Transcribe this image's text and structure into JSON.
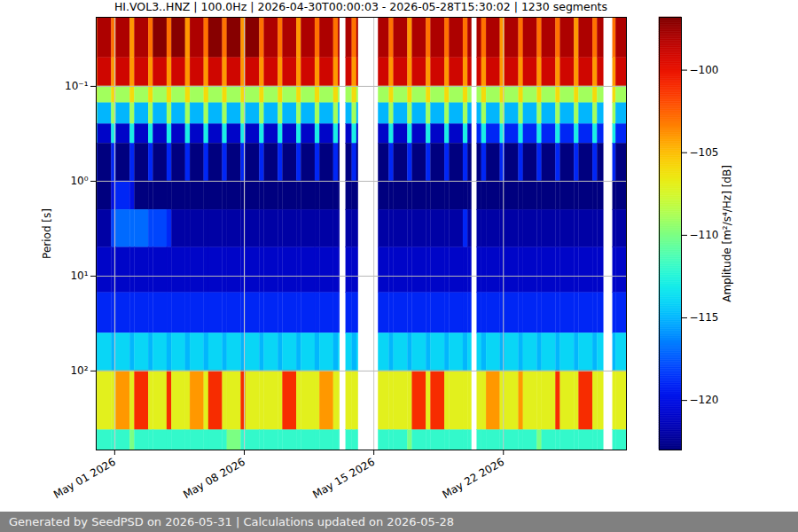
{
  "chart_data": {
    "type": "heatmap",
    "title": "HI.VOL3..HNZ | 100.0Hz | 2026-04-30T00:00:03 - 2026-05-28T15:30:02 | 1230 segments",
    "y_label": "Period [s]",
    "caption": "Generated by SeedPSD on 2026-05-31 | Calculations updated on 2026-05-28",
    "log": "y",
    "grid": true,
    "xlim": [
      "2026-04-30T00:00:03",
      "2026-05-28T15:30:02"
    ],
    "xticks": [
      {
        "value": "2026-05-01",
        "label": "May 01 2026"
      },
      {
        "value": "2026-05-08",
        "label": "May 08 2026"
      },
      {
        "value": "2026-05-15",
        "label": "May 15 2026"
      },
      {
        "value": "2026-05-22",
        "label": "May 22 2026"
      }
    ],
    "ylim": [
      0.0187,
      680
    ],
    "yticks": [
      {
        "value": 0.1,
        "label": "10⁻¹"
      },
      {
        "value": 1,
        "label": "10⁰"
      },
      {
        "value": 10,
        "label": "10¹"
      },
      {
        "value": 100,
        "label": "10²"
      }
    ],
    "time_edges": [
      "2026-04-30T00:00",
      "2026-04-30T02:00",
      "2026-04-30T20:00",
      "2026-05-01T02:00",
      "2026-05-01T20:00",
      "2026-05-02T02:00",
      "2026-05-02T20:00",
      "2026-05-03T02:00",
      "2026-05-03T20:00",
      "2026-05-04T02:00",
      "2026-05-04T20:00",
      "2026-05-05T02:00",
      "2026-05-05T20:00",
      "2026-05-06T02:00",
      "2026-05-06T20:00",
      "2026-05-07T02:00",
      "2026-05-07T20:00",
      "2026-05-08T02:00",
      "2026-05-08T20:00",
      "2026-05-09T02:00",
      "2026-05-09T20:00",
      "2026-05-10T02:00",
      "2026-05-10T20:00",
      "2026-05-11T02:00",
      "2026-05-11T20:00",
      "2026-05-12T02:00",
      "2026-05-12T20:00",
      "2026-05-13T02:00",
      "2026-05-13T04:00",
      "2026-05-13T12:00",
      "2026-05-13T20:00",
      "2026-05-14T02:00",
      "2026-05-14T04:00",
      "2026-05-15T06:00",
      "2026-05-15T20:00",
      "2026-05-16T02:00",
      "2026-05-16T20:00",
      "2026-05-17T02:00",
      "2026-05-17T20:00",
      "2026-05-18T02:00",
      "2026-05-18T20:00",
      "2026-05-19T02:00",
      "2026-05-19T20:00",
      "2026-05-20T02:00",
      "2026-05-20T07:00",
      "2026-05-20T14:00",
      "2026-05-20T20:00",
      "2026-05-21T02:00",
      "2026-05-21T20:00",
      "2026-05-22T02:00",
      "2026-05-22T20:00",
      "2026-05-23T02:00",
      "2026-05-23T20:00",
      "2026-05-24T02:00",
      "2026-05-24T20:00",
      "2026-05-25T02:00",
      "2026-05-25T20:00",
      "2026-05-26T02:00",
      "2026-05-26T20:00",
      "2026-05-27T02:00",
      "2026-05-27T10:00",
      "2026-05-27T22:00",
      "2026-05-28T02:00",
      "2026-05-28T15:30"
    ],
    "period_edges": [
      0.0187,
      0.05,
      0.1,
      0.15,
      0.25,
      0.4,
      1,
      2,
      5,
      15,
      40,
      100,
      420,
      680
    ],
    "cells": [
      [
        -103,
        -98,
        -103,
        -98,
        -104,
        -98,
        -103,
        -97,
        -103,
        -97,
        -104,
        -98,
        -103,
        -97,
        -103,
        -97,
        -104,
        -97,
        -103,
        -98,
        -103,
        -98,
        -104,
        -98,
        -103,
        -98,
        -103,
        -98,
        null,
        -98,
        -103,
        -98,
        null,
        -98,
        -103,
        -98,
        -104,
        -98,
        -103,
        -98,
        -103,
        -98,
        -103,
        -98,
        null,
        -98,
        -103,
        -98,
        -104,
        -98,
        -103,
        -98,
        -103,
        -98,
        -103,
        -98,
        -104,
        -98,
        -103,
        -98,
        null,
        -103,
        -98
      ],
      [
        -104,
        -99,
        -104,
        -99,
        -104,
        -99,
        -104,
        -99,
        -104,
        -99,
        -104,
        -99,
        -104,
        -99,
        -104,
        -99,
        -104,
        -99,
        -104,
        -99,
        -104,
        -99,
        -104,
        -99,
        -104,
        -99,
        -104,
        -99,
        null,
        -99,
        -104,
        -99,
        null,
        -99,
        -104,
        -99,
        -104,
        -99,
        -104,
        -99,
        -104,
        -99,
        -104,
        -99,
        null,
        -99,
        -104,
        -99,
        -104,
        -99,
        -104,
        -99,
        -104,
        -99,
        -104,
        -99,
        -104,
        -99,
        -104,
        -99,
        null,
        -104,
        -99
      ],
      [
        -106,
        -109,
        -106,
        -109,
        -106,
        -109,
        -106,
        -109,
        -106,
        -109,
        -106,
        -109,
        -106,
        -109,
        -106,
        -109,
        -106,
        -109,
        -106,
        -109,
        -106,
        -109,
        -106,
        -109,
        -106,
        -109,
        -106,
        -109,
        null,
        -109,
        -106,
        -109,
        null,
        -109,
        -106,
        -109,
        -106,
        -109,
        -106,
        -109,
        -106,
        -109,
        -106,
        -109,
        null,
        -109,
        -106,
        -109,
        -106,
        -109,
        -106,
        -109,
        -106,
        -109,
        -106,
        -109,
        -106,
        -109,
        -106,
        -109,
        null,
        -106,
        -109
      ],
      [
        -109,
        -115,
        -109,
        -115,
        -109,
        -115,
        -109,
        -115,
        -109,
        -115,
        -109,
        -115,
        -109,
        -115,
        -109,
        -115,
        -109,
        -115,
        -109,
        -115,
        -109,
        -115,
        -109,
        -115,
        -109,
        -115,
        -109,
        -115,
        null,
        -115,
        -109,
        -115,
        null,
        -115,
        -109,
        -115,
        -109,
        -115,
        -109,
        -115,
        -109,
        -115,
        -109,
        -115,
        null,
        -115,
        -109,
        -115,
        -109,
        -115,
        -109,
        -115,
        -109,
        -115,
        -109,
        -115,
        -109,
        -115,
        -109,
        -115,
        null,
        -109,
        -115
      ],
      [
        -113,
        -121,
        -113,
        -121,
        -113,
        -121,
        -113,
        -121,
        -113,
        -121,
        -113,
        -121,
        -113,
        -121,
        -113,
        -121,
        -113,
        -121,
        -113,
        -121,
        -113,
        -121,
        -113,
        -121,
        -113,
        -121,
        -113,
        -121,
        null,
        -121,
        -113,
        -121,
        null,
        -121,
        -113,
        -121,
        -113,
        -121,
        -113,
        -121,
        -113,
        -121,
        -113,
        -121,
        null,
        -119,
        -113,
        -119,
        -113,
        -119,
        -113,
        -119,
        -113,
        -119,
        -113,
        -119,
        -113,
        -119,
        -113,
        -119,
        null,
        -113,
        -119
      ],
      [
        -119,
        -123,
        -119,
        -123,
        -119,
        -123,
        -119,
        -123,
        -119,
        -123,
        -119,
        -123,
        -119,
        -123,
        -119,
        -123,
        -119,
        -123,
        -119,
        -123,
        -119,
        -123,
        -119,
        -123,
        -119,
        -123,
        -119,
        -123,
        null,
        -123,
        -119,
        -123,
        null,
        -123,
        -119,
        -123,
        -119,
        -123,
        -119,
        -123,
        -119,
        -123,
        -119,
        -123,
        null,
        -123,
        -119,
        -123,
        -119,
        -123,
        -119,
        -123,
        -119,
        -123,
        -119,
        -123,
        -119,
        -123,
        -119,
        -123,
        null,
        -119,
        -123
      ],
      [
        -123,
        -123,
        -120,
        -119,
        -120,
        -123,
        -123,
        -123,
        -123,
        -123,
        -123,
        -123,
        -123,
        -123,
        -123,
        -123,
        -123,
        -123,
        -123,
        -123,
        -123,
        -123,
        -123,
        -123,
        -123,
        -123,
        -123,
        -123,
        null,
        -123,
        -123,
        -123,
        null,
        -123,
        -123,
        -123,
        -123,
        -123,
        -123,
        -123,
        -123,
        -123,
        -123,
        -123,
        null,
        -123,
        -123,
        -123,
        -123,
        -123,
        -123,
        -123,
        -123,
        -123,
        -123,
        -123,
        -123,
        -123,
        -123,
        -123,
        null,
        -123,
        -123
      ],
      [
        -122,
        -122,
        -118,
        -117,
        -117,
        -117,
        -118,
        -118,
        -119,
        -122,
        -122,
        -122,
        -122,
        -122,
        -122,
        -122,
        -122,
        -122,
        -122,
        -122,
        -122,
        -122,
        -122,
        -122,
        -122,
        -122,
        -122,
        -122,
        null,
        -122,
        -122,
        -122,
        null,
        -122,
        -122,
        -122,
        -122,
        -122,
        -122,
        -122,
        -122,
        -122,
        -119,
        -122,
        null,
        -122,
        -122,
        -122,
        -122,
        -122,
        -122,
        -122,
        -122,
        -122,
        -122,
        -122,
        -122,
        -122,
        -122,
        -122,
        null,
        -122,
        -122
      ],
      [
        -121,
        -121,
        -121,
        -121,
        -121,
        -121,
        -121,
        -121,
        -121,
        -121,
        -121,
        -121,
        -121,
        -121,
        -121,
        -121,
        -121,
        -121,
        -121,
        -121,
        -121,
        -121,
        -121,
        -121,
        -121,
        -121,
        -121,
        -121,
        null,
        -121,
        -121,
        -121,
        null,
        -121,
        -121,
        -121,
        -121,
        -121,
        -121,
        -121,
        -121,
        -121,
        -121,
        -121,
        null,
        -121,
        -121,
        -121,
        -121,
        -121,
        -121,
        -121,
        -121,
        -121,
        -121,
        -121,
        -121,
        -121,
        -121,
        -121,
        null,
        -121,
        -121
      ],
      [
        -119,
        -119,
        -119,
        -119,
        -119,
        -119,
        -119,
        -119,
        -119,
        -119,
        -119,
        -119,
        -119,
        -119,
        -119,
        -119,
        -119,
        -119,
        -119,
        -119,
        -119,
        -119,
        -119,
        -119,
        -119,
        -119,
        -119,
        -119,
        null,
        -119,
        -119,
        -119,
        null,
        -119,
        -119,
        -119,
        -119,
        -119,
        -119,
        -119,
        -119,
        -119,
        -119,
        -119,
        null,
        -119,
        -119,
        -119,
        -119,
        -119,
        -119,
        -119,
        -119,
        -119,
        -119,
        -119,
        -119,
        -119,
        -119,
        -119,
        null,
        -119,
        -119
      ],
      [
        -115,
        -114,
        -115,
        -114,
        -115,
        -114,
        -115,
        -114,
        -115,
        -114,
        -115,
        -114,
        -115,
        -114,
        -115,
        -114,
        -115,
        -114,
        -115,
        -114,
        -115,
        -114,
        -115,
        -114,
        -115,
        -114,
        -115,
        -114,
        null,
        -114,
        -115,
        -114,
        null,
        -114,
        -115,
        -114,
        -115,
        -114,
        -115,
        -114,
        -115,
        -114,
        -115,
        -114,
        null,
        -114,
        -115,
        -114,
        -115,
        -114,
        -115,
        -114,
        -115,
        -114,
        -115,
        -114,
        -115,
        -114,
        -115,
        -114,
        null,
        -115,
        -114
      ],
      [
        -107,
        -107,
        -107,
        -104,
        -107,
        -101,
        -107,
        -107,
        -101,
        -107,
        -107,
        -104,
        -107,
        -101,
        -107,
        -107,
        -101,
        -107,
        -107,
        -107,
        -107,
        -101,
        -107,
        -107,
        -107,
        -104,
        -107,
        -107,
        null,
        -107,
        -107,
        -107,
        null,
        -107,
        -107,
        -107,
        -107,
        -101,
        -107,
        -101,
        -107,
        -107,
        -107,
        -107,
        null,
        -107,
        -107,
        -104,
        -107,
        -107,
        -104,
        -107,
        -107,
        -107,
        -101,
        -107,
        -107,
        -101,
        -107,
        -107,
        null,
        -107,
        -107
      ],
      [
        -112,
        -112,
        -112,
        -112,
        -110,
        -112,
        -112,
        -112,
        -112,
        -112,
        -112,
        -112,
        -112,
        -112,
        -112,
        -110,
        -112,
        -112,
        -112,
        -112,
        -112,
        -112,
        -112,
        -112,
        -112,
        -112,
        -112,
        -112,
        null,
        -112,
        -112,
        -112,
        null,
        -112,
        -112,
        -112,
        -110,
        -112,
        -112,
        -112,
        -112,
        -112,
        -112,
        -112,
        null,
        -112,
        -112,
        -112,
        -112,
        -112,
        -112,
        -112,
        -110,
        -112,
        -112,
        -112,
        -112,
        -112,
        -112,
        -112,
        null,
        -112,
        -112
      ]
    ],
    "colorbar": {
      "label": "Amplitude [m²/s⁴/Hz] [dB]",
      "range": [
        -123,
        -96.8
      ],
      "ticks": [
        {
          "value": -100,
          "label": "−100"
        },
        {
          "value": -105,
          "label": "−105"
        },
        {
          "value": -110,
          "label": "−110"
        },
        {
          "value": -115,
          "label": "−115"
        },
        {
          "value": -120,
          "label": "−120"
        }
      ]
    }
  }
}
